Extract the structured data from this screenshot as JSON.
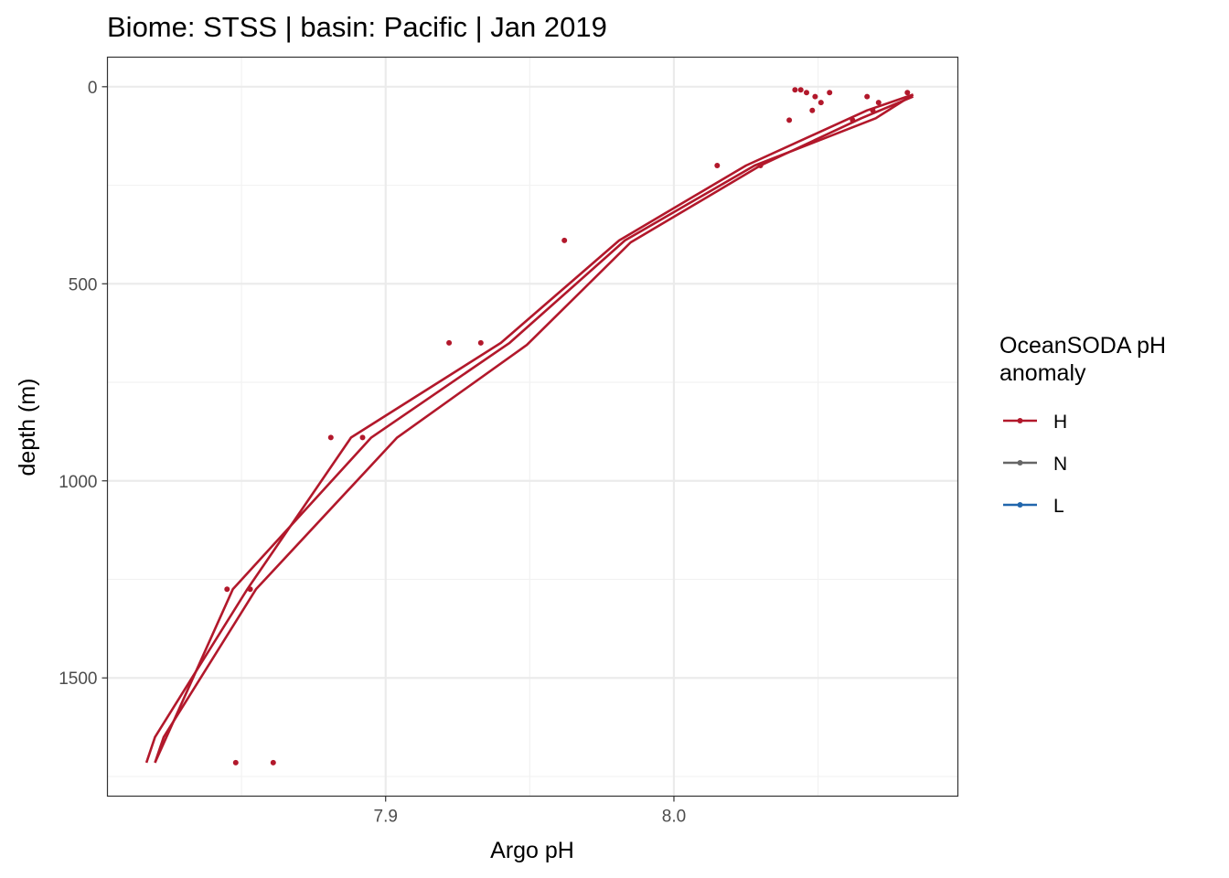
{
  "chart_data": {
    "type": "line",
    "title": "Biome: STSS | basin: Pacific  | Jan 2019",
    "xlabel": "Argo pH",
    "ylabel": "depth (m)",
    "xlim": [
      7.8035,
      8.0985
    ],
    "ylim": [
      1800,
      -75
    ],
    "y_reversed": true,
    "x_ticks": [
      7.9,
      8.0
    ],
    "x_tick_labels": [
      "7.9",
      "8.0"
    ],
    "y_ticks": [
      0,
      500,
      1000,
      1500
    ],
    "y_tick_labels": [
      "0",
      "500",
      "1000",
      "1500"
    ],
    "grid": true,
    "legend": {
      "title_lines": [
        "OceanSODA pH",
        "anomaly"
      ],
      "placement": "right",
      "entries": [
        {
          "label": "H",
          "color": "#b2182b"
        },
        {
          "label": "N",
          "color": "#666666"
        },
        {
          "label": "L",
          "color": "#2166ac"
        }
      ]
    },
    "series": [
      {
        "anomaly": "H",
        "color": "#b2182b",
        "mark": "line",
        "points": [
          [
            8.083,
            20
          ],
          [
            8.07,
            80
          ],
          [
            8.028,
            200
          ],
          [
            7.983,
            390
          ],
          [
            7.943,
            650
          ],
          [
            7.895,
            890
          ],
          [
            7.847,
            1275
          ],
          [
            7.82,
            1715
          ]
        ]
      },
      {
        "anomaly": "H",
        "color": "#b2182b",
        "mark": "line",
        "points": [
          [
            8.083,
            20
          ],
          [
            8.067,
            60
          ],
          [
            8.025,
            200
          ],
          [
            7.981,
            390
          ],
          [
            7.94,
            650
          ],
          [
            7.888,
            890
          ],
          [
            7.852,
            1275
          ],
          [
            7.82,
            1650
          ],
          [
            7.817,
            1715
          ]
        ]
      },
      {
        "anomaly": "H",
        "color": "#b2182b",
        "mark": "line",
        "points": [
          [
            8.083,
            25
          ],
          [
            8.065,
            80
          ],
          [
            8.03,
            200
          ],
          [
            7.985,
            395
          ],
          [
            7.949,
            655
          ],
          [
            7.904,
            890
          ],
          [
            7.855,
            1275
          ],
          [
            7.823,
            1650
          ],
          [
            7.82,
            1715
          ]
        ]
      },
      {
        "anomaly": "H",
        "color": "#b2182b",
        "mark": "point",
        "points": [
          [
            8.042,
            8
          ],
          [
            8.044,
            8
          ],
          [
            8.046,
            15
          ],
          [
            8.049,
            25
          ],
          [
            8.054,
            15
          ],
          [
            8.051,
            40
          ],
          [
            8.067,
            25
          ],
          [
            8.071,
            40
          ],
          [
            8.081,
            15
          ],
          [
            8.04,
            85
          ],
          [
            8.048,
            60
          ],
          [
            8.062,
            85
          ],
          [
            8.069,
            60
          ],
          [
            8.015,
            200
          ],
          [
            8.03,
            200
          ],
          [
            7.962,
            390
          ],
          [
            7.922,
            650
          ],
          [
            7.933,
            650
          ],
          [
            7.881,
            890
          ],
          [
            7.892,
            890
          ],
          [
            7.845,
            1275
          ],
          [
            7.853,
            1275
          ],
          [
            7.848,
            1715
          ],
          [
            7.861,
            1715
          ]
        ]
      }
    ]
  }
}
